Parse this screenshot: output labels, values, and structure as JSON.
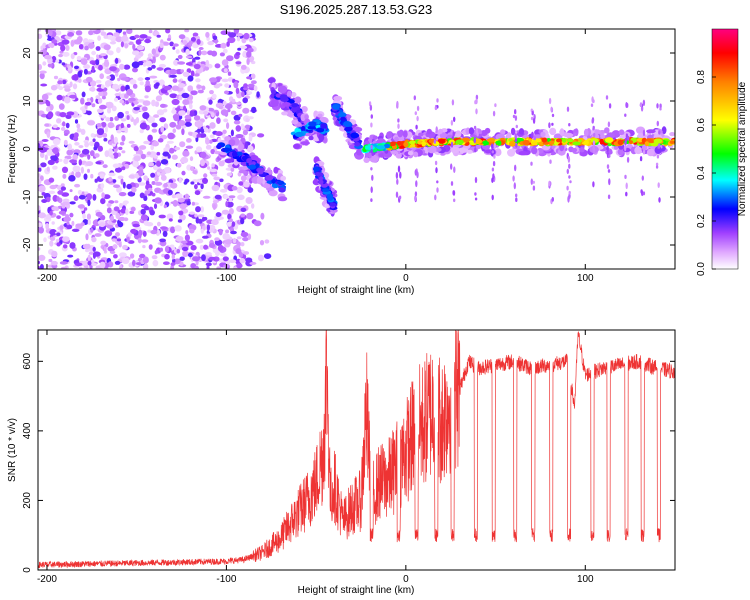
{
  "figure_title": "S196.2025.287.13.53.G23",
  "chart_data": [
    {
      "type": "heatmap",
      "title": "S196.2025.287.13.53.G23",
      "xlabel": "Height of straight line (km)",
      "ylabel": "Frequency (Hz)",
      "xlim": [
        -205,
        150
      ],
      "ylim": [
        -25,
        25
      ],
      "x_ticks": [
        -200,
        -100,
        0,
        100
      ],
      "x_tick_labels": [
        "-200",
        "-100",
        "0",
        "100"
      ],
      "y_ticks": [
        -20,
        -10,
        0,
        10,
        20
      ],
      "y_tick_labels": [
        "-20",
        "-10",
        "0",
        "10",
        "20"
      ],
      "grid": false,
      "colorbar": {
        "label": "Normalized spectral amplitude",
        "range": [
          0,
          1
        ],
        "ticks": [
          0.0,
          0.2,
          0.4,
          0.6,
          0.8
        ],
        "tick_labels": [
          "0.0",
          "0.2",
          "0.4",
          "0.6",
          "0.8"
        ],
        "colors": [
          "#ffffff",
          "#a040ff",
          "#0000ff",
          "#00ffff",
          "#00ff00",
          "#ffff00",
          "#ff8000",
          "#ff0000",
          "#ff0080"
        ]
      },
      "regions": [
        {
          "name": "noise",
          "x_range": [
            -205,
            -85
          ],
          "freq_range": [
            -25,
            25
          ],
          "amplitude": 0.12
        },
        {
          "name": "streak-1",
          "x": [
            -105,
            -90,
            -80,
            -68
          ],
          "freq": [
            1,
            -2,
            -5,
            -8
          ],
          "amplitude": 0.3
        },
        {
          "name": "streak-2",
          "x": [
            -75,
            -63,
            -55
          ],
          "freq": [
            12,
            9,
            5
          ],
          "amplitude": 0.25
        },
        {
          "name": "streak-3",
          "x": [
            -62,
            -50,
            -45
          ],
          "freq": [
            3,
            5,
            4
          ],
          "amplitude": 0.35
        },
        {
          "name": "streak-4",
          "x": [
            -50,
            -45,
            -40
          ],
          "freq": [
            -4,
            -8,
            -12
          ],
          "amplitude": 0.3
        },
        {
          "name": "streak-5",
          "x": [
            -40,
            -33,
            -26
          ],
          "freq": [
            9,
            5,
            1
          ],
          "amplitude": 0.3
        },
        {
          "name": "carrier",
          "x": [
            -23,
            0,
            20,
            60,
            100,
            150
          ],
          "freq": [
            0,
            1,
            1.5,
            1.5,
            1.5,
            1.5
          ],
          "amplitude": 0.85
        }
      ]
    },
    {
      "type": "line",
      "xlabel": "Height of straight line (km)",
      "ylabel": "SNR (10 * v/v)",
      "xlim": [
        -205,
        150
      ],
      "ylim": [
        0,
        690
      ],
      "x_ticks": [
        -200,
        -100,
        0,
        100
      ],
      "x_tick_labels": [
        "-200",
        "-100",
        "0",
        "100"
      ],
      "y_ticks": [
        0,
        200,
        400,
        600
      ],
      "y_tick_labels": [
        "0",
        "200",
        "400",
        "600"
      ],
      "grid": false,
      "series": [
        {
          "name": "SNR",
          "color": "#ee3333",
          "x": [
            -205,
            -150,
            -100,
            -90,
            -80,
            -70,
            -62,
            -55,
            -50,
            -46,
            -44,
            -42,
            -40,
            -35,
            -30,
            -25,
            -22,
            -20,
            -18,
            -15,
            -10,
            -5,
            0,
            5,
            10,
            15,
            20,
            25,
            30,
            35,
            40,
            50,
            60,
            70,
            80,
            90,
            94,
            96,
            100,
            110,
            120,
            130,
            140,
            150
          ],
          "values": [
            15,
            20,
            25,
            30,
            50,
            90,
            150,
            200,
            250,
            340,
            580,
            200,
            250,
            140,
            180,
            200,
            460,
            280,
            220,
            250,
            260,
            300,
            340,
            400,
            420,
            470,
            430,
            500,
            520,
            600,
            580,
            590,
            600,
            580,
            590,
            600,
            470,
            680,
            560,
            580,
            590,
            600,
            580,
            570
          ]
        }
      ],
      "dips_x": [
        -19,
        -4,
        6,
        17,
        26,
        39,
        49,
        61,
        71,
        81,
        91,
        104,
        113,
        123,
        132,
        141
      ],
      "dip_value": 80
    }
  ]
}
